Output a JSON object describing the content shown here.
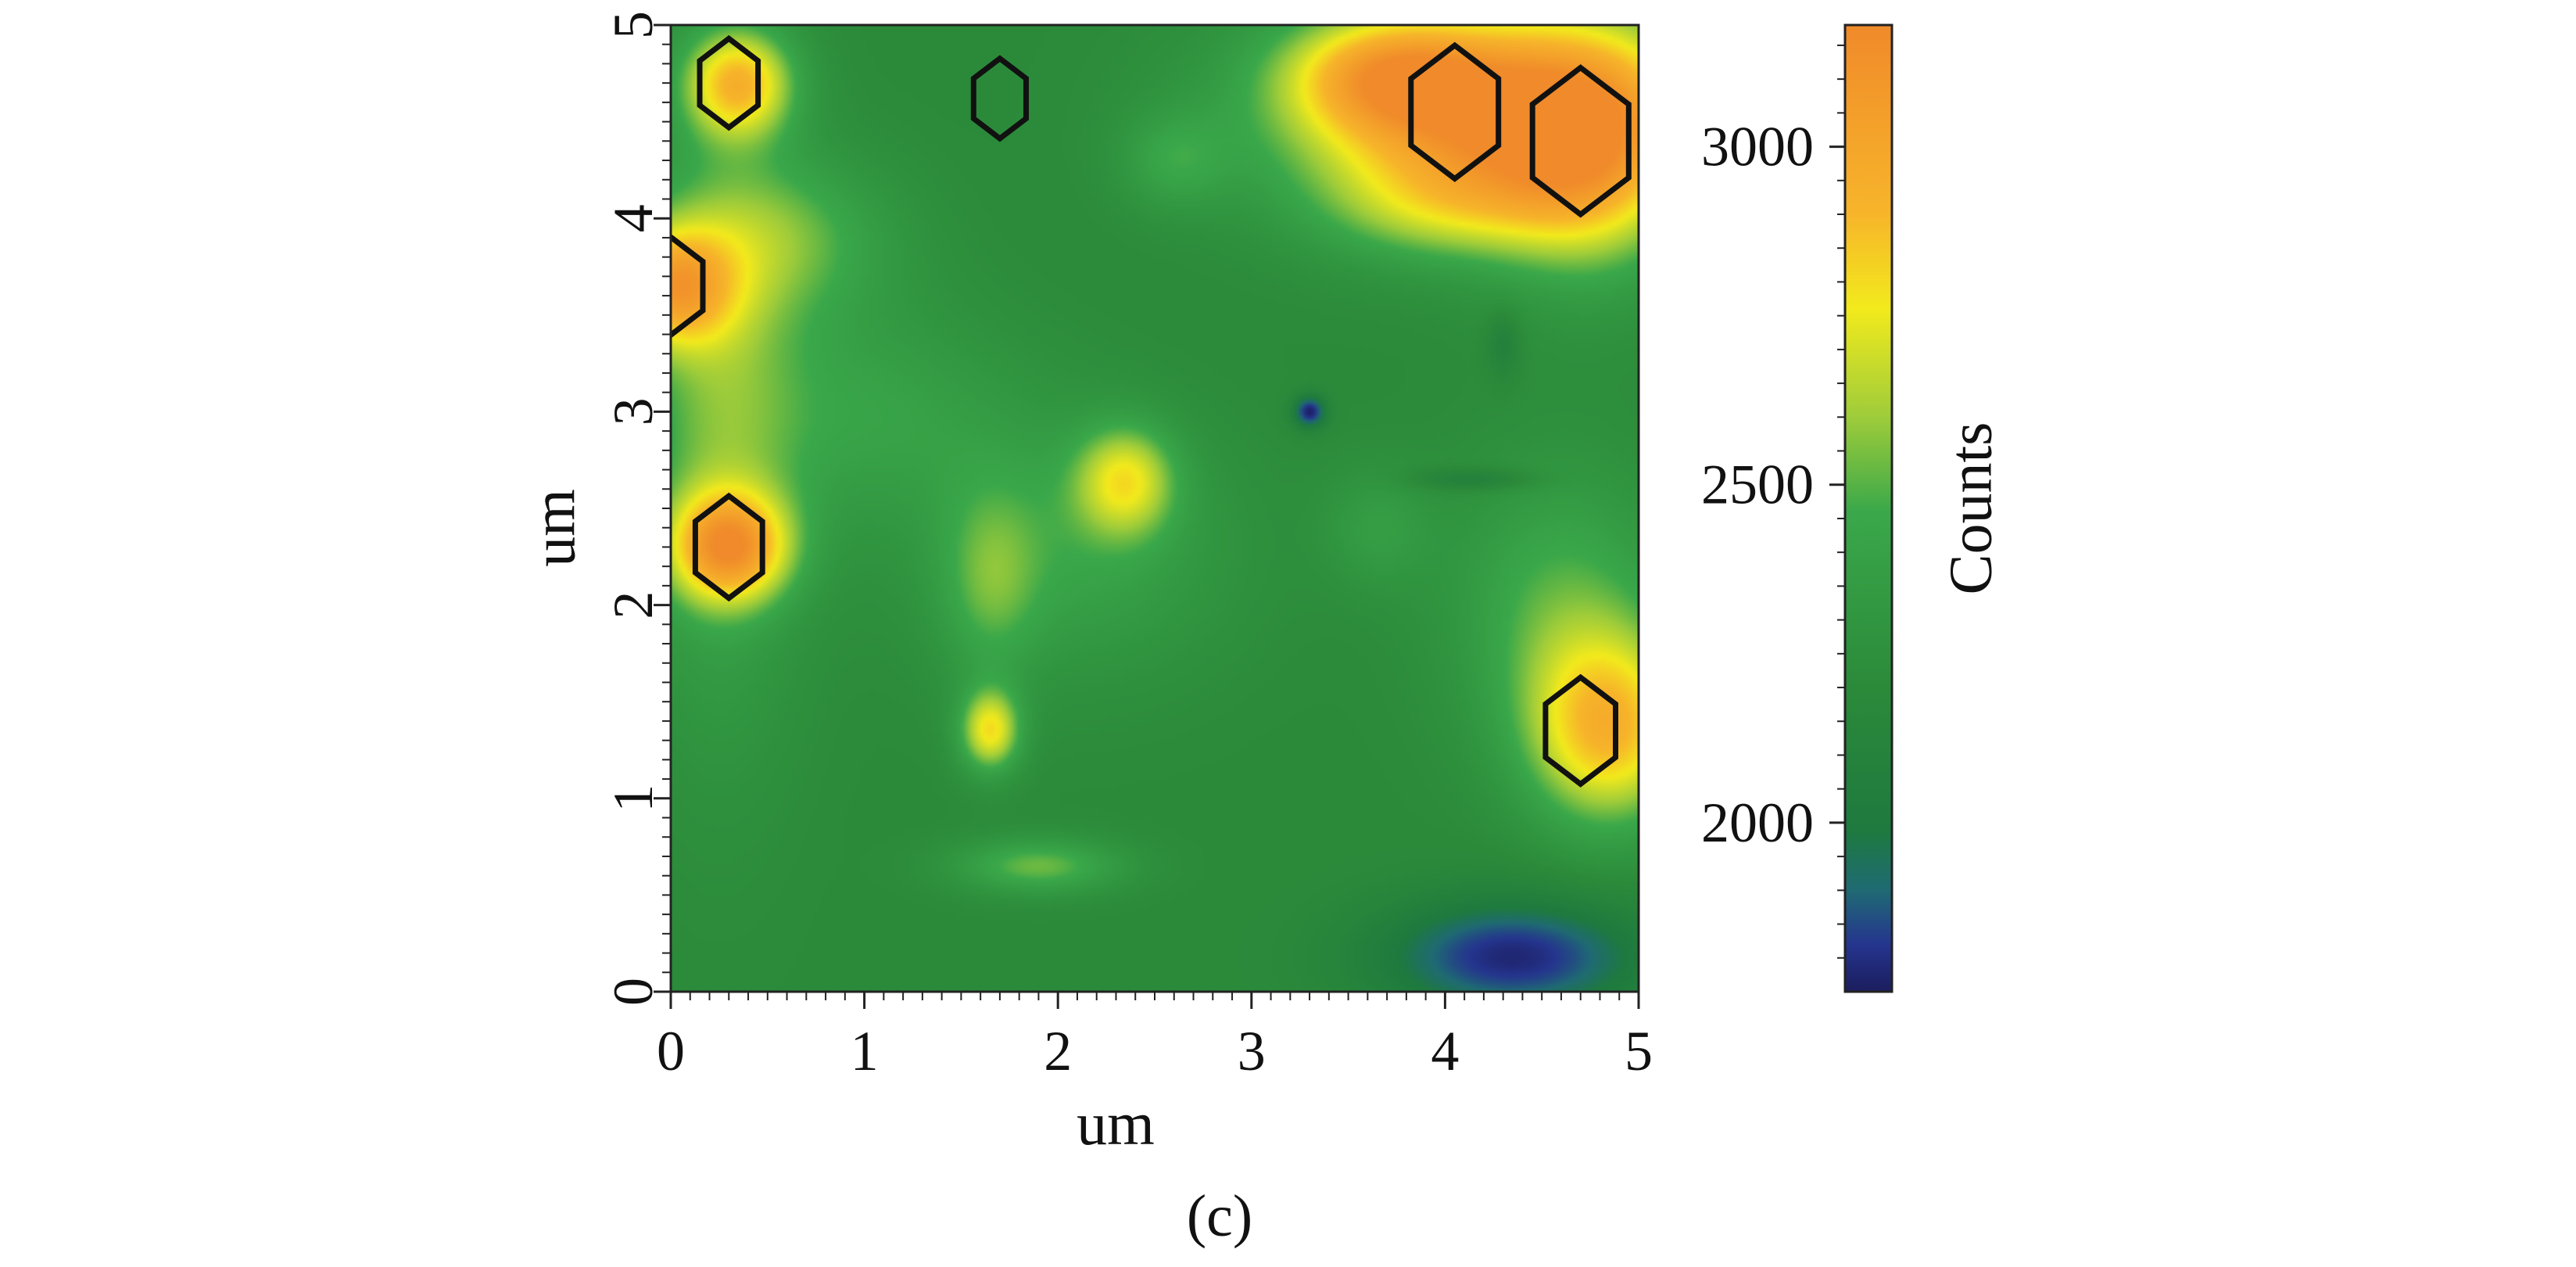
{
  "caption": "(c)",
  "chart_data": {
    "type": "heatmap",
    "xlabel": "um",
    "ylabel": "um",
    "xlim": [
      0,
      5
    ],
    "ylim": [
      0,
      5
    ],
    "x_ticks": [
      0,
      1,
      2,
      3,
      4,
      5
    ],
    "y_ticks": [
      0,
      1,
      2,
      3,
      4,
      5
    ],
    "colorbar": {
      "label": "Counts",
      "range": [
        1750,
        3180
      ],
      "ticks": [
        2000,
        2500,
        3000
      ],
      "stops": [
        {
          "value": 1750,
          "color": "#1b1d5e"
        },
        {
          "value": 1820,
          "color": "#25358e"
        },
        {
          "value": 1900,
          "color": "#1f6a73"
        },
        {
          "value": 1990,
          "color": "#1e7a3e"
        },
        {
          "value": 2200,
          "color": "#2b8a3a"
        },
        {
          "value": 2460,
          "color": "#3aa84a"
        },
        {
          "value": 2600,
          "color": "#9ecc3a"
        },
        {
          "value": 2760,
          "color": "#f2ea1c"
        },
        {
          "value": 2900,
          "color": "#f7b52a"
        },
        {
          "value": 3180,
          "color": "#f08a2a"
        }
      ]
    },
    "background_counts": 2200,
    "features": [
      {
        "x": 4.25,
        "y": 4.55,
        "sx": 0.75,
        "sy": 0.38,
        "counts": 900
      },
      {
        "x": 4.75,
        "y": 4.3,
        "sx": 0.35,
        "sy": 0.45,
        "counts": 450
      },
      {
        "x": 3.7,
        "y": 4.75,
        "sx": 0.35,
        "sy": 0.2,
        "counts": 450
      },
      {
        "x": 0.35,
        "y": 4.7,
        "sx": 0.2,
        "sy": 0.2,
        "counts": 650
      },
      {
        "x": 0.0,
        "y": 3.65,
        "sx": 0.22,
        "sy": 0.22,
        "counts": 650
      },
      {
        "x": 0.3,
        "y": 2.3,
        "sx": 0.22,
        "sy": 0.2,
        "counts": 760
      },
      {
        "x": 1.65,
        "y": 1.35,
        "sx": 0.11,
        "sy": 0.15,
        "counts": 560
      },
      {
        "x": 4.85,
        "y": 1.35,
        "sx": 0.3,
        "sy": 0.35,
        "counts": 650
      },
      {
        "x": 4.6,
        "y": 2.0,
        "sx": 0.4,
        "sy": 0.5,
        "counts": 280
      },
      {
        "x": 0.25,
        "y": 3.0,
        "sx": 0.3,
        "sy": 1.1,
        "counts": 300
      },
      {
        "x": 0.6,
        "y": 3.9,
        "sx": 0.4,
        "sy": 0.3,
        "counts": 280
      },
      {
        "x": 2.35,
        "y": 2.65,
        "sx": 0.18,
        "sy": 0.2,
        "counts": 450
      },
      {
        "x": 2.1,
        "y": 2.3,
        "sx": 0.55,
        "sy": 0.45,
        "counts": 220
      },
      {
        "x": 1.65,
        "y": 2.1,
        "sx": 0.18,
        "sy": 0.35,
        "counts": 220
      },
      {
        "x": 1.9,
        "y": 0.65,
        "sx": 0.3,
        "sy": 0.1,
        "counts": 330
      },
      {
        "x": 1.0,
        "y": 3.0,
        "sx": 0.55,
        "sy": 0.4,
        "counts": 200
      },
      {
        "x": 2.6,
        "y": 4.3,
        "sx": 0.2,
        "sy": 0.18,
        "counts": 200
      },
      {
        "x": 4.0,
        "y": 4.05,
        "sx": 0.45,
        "sy": 0.2,
        "counts": 250
      },
      {
        "x": 3.65,
        "y": 2.4,
        "sx": 0.2,
        "sy": 0.22,
        "counts": 160
      },
      {
        "x": 4.35,
        "y": 0.18,
        "sx": 0.5,
        "sy": 0.22,
        "counts": -420
      },
      {
        "x": 3.3,
        "y": 3.0,
        "sx": 0.06,
        "sy": 0.06,
        "counts": -450
      },
      {
        "x": 4.15,
        "y": 2.65,
        "sx": 0.22,
        "sy": 0.04,
        "counts": -180
      },
      {
        "x": 4.3,
        "y": 3.35,
        "sx": 0.06,
        "sy": 0.12,
        "counts": -150
      }
    ],
    "markers": [
      {
        "shape": "hexagon",
        "x": 0.3,
        "y": 4.7,
        "size": 0.2
      },
      {
        "shape": "hexagon",
        "x": 1.7,
        "y": 4.62,
        "size": 0.18
      },
      {
        "shape": "hexagon",
        "x": 4.05,
        "y": 4.55,
        "size": 0.3
      },
      {
        "shape": "hexagon",
        "x": 4.7,
        "y": 4.4,
        "size": 0.33
      },
      {
        "shape": "hexagon",
        "x": 0.0,
        "y": 3.65,
        "size": 0.22
      },
      {
        "shape": "hexagon",
        "x": 0.3,
        "y": 2.3,
        "size": 0.23
      },
      {
        "shape": "hexagon",
        "x": 4.7,
        "y": 1.35,
        "size": 0.24
      }
    ]
  }
}
